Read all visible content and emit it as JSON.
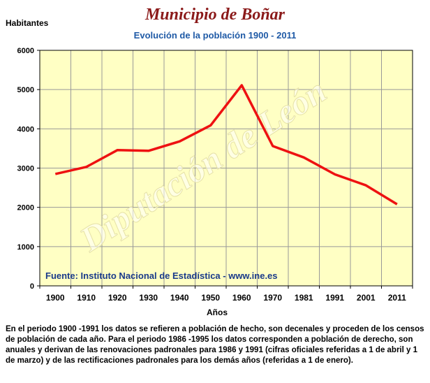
{
  "header": {
    "title": "Municipio de Boñar",
    "subtitle": "Evolución de la población 1900 - 2011"
  },
  "watermark": "Diputación de León",
  "source_text": "Fuente: Instituto Nacional de Estadística - www.ine.es",
  "note_text": "En el periodo 1900 -1991 los datos se refieren a población de hecho, son decenales y proceden de los censos de población de cada año. Para el periodo 1986 -1995 los datos corresponden a población de derecho, son anuales y derivan de las renovaciones padronales para 1986 y 1991 (cifras oficiales referidas a 1 de abril y 1 de marzo) y de las rectificaciones padronales para los demás años (referidas a 1 de enero).",
  "colors": {
    "plot_bg": "#ffffc4",
    "line": "#ee1111",
    "grid": "#999999",
    "title": "#8b1a1a",
    "subtitle": "#1f5aa6"
  },
  "chart_data": {
    "type": "line",
    "title": "Evolución de la población 1900 - 2011",
    "xlabel": "Años",
    "ylabel": "Habitantes",
    "categories": [
      "1900",
      "1910",
      "1920",
      "1930",
      "1940",
      "1950",
      "1960",
      "1970",
      "1981",
      "1991",
      "2001",
      "2011"
    ],
    "yticks": [
      "0",
      "1000",
      "2000",
      "3000",
      "4000",
      "5000",
      "6000"
    ],
    "ylim": [
      0,
      6000
    ],
    "grid": true,
    "series": [
      {
        "values": [
          2850,
          3030,
          3460,
          3440,
          3680,
          4090,
          5110,
          3560,
          3270,
          2840,
          2560,
          2080
        ]
      }
    ]
  }
}
